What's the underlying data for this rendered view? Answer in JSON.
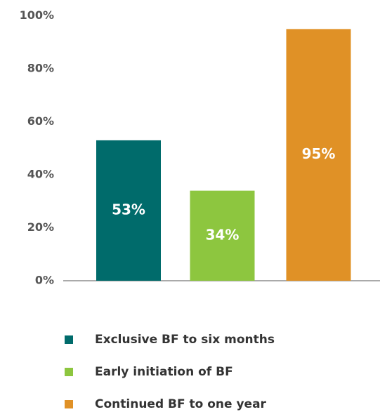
{
  "chart_data": {
    "type": "bar",
    "categories": [
      "Exclusive BF to six months",
      "Early initiation of BF",
      "Continued BF to one year"
    ],
    "values": [
      53,
      34,
      95
    ],
    "value_labels": [
      "53%",
      "34%",
      "95%"
    ],
    "colors": [
      "#006b6b",
      "#8dc63f",
      "#e09126"
    ],
    "ylim": [
      0,
      100
    ],
    "yticks": [
      {
        "value": 0,
        "label": "0%"
      },
      {
        "value": 20,
        "label": "20%"
      },
      {
        "value": 40,
        "label": "40%"
      },
      {
        "value": 60,
        "label": "60%"
      },
      {
        "value": 80,
        "label": "80%"
      },
      {
        "value": 100,
        "label": "100%"
      }
    ],
    "grid": false,
    "legend": "bottom"
  }
}
